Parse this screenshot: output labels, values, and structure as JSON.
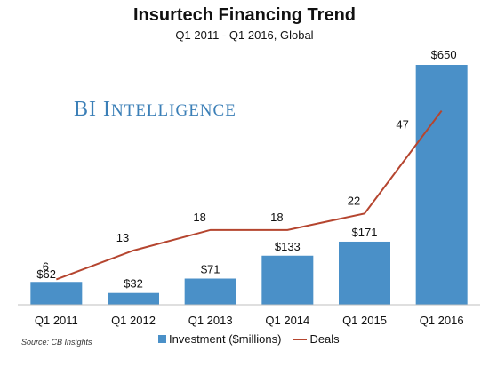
{
  "chart_data": {
    "type": "bar",
    "title": "Insurtech Financing Trend",
    "subtitle": "Q1 2011 - Q1 2016, Global",
    "categories": [
      "Q1 2011",
      "Q1 2012",
      "Q1 2013",
      "Q1 2014",
      "Q1 2015",
      "Q1 2016"
    ],
    "series": [
      {
        "name": "Investment ($millions)",
        "type": "bar",
        "values": [
          62,
          32,
          71,
          133,
          171,
          650
        ],
        "labels": [
          "$62",
          "$32",
          "$71",
          "$133",
          "$171",
          "$650"
        ],
        "color": "#4a90c8"
      },
      {
        "name": "Deals",
        "type": "line",
        "values": [
          6,
          13,
          18,
          18,
          22,
          47
        ],
        "labels": [
          "6",
          "13",
          "18",
          "18",
          "22",
          "47"
        ],
        "color": "#b5452f"
      }
    ],
    "legend_position": "bottom",
    "grid": false
  },
  "watermark": {
    "first": "BI",
    "second_cap": "I",
    "second_rest": "NTELLIGENCE"
  },
  "source": "Source: CB Insights"
}
